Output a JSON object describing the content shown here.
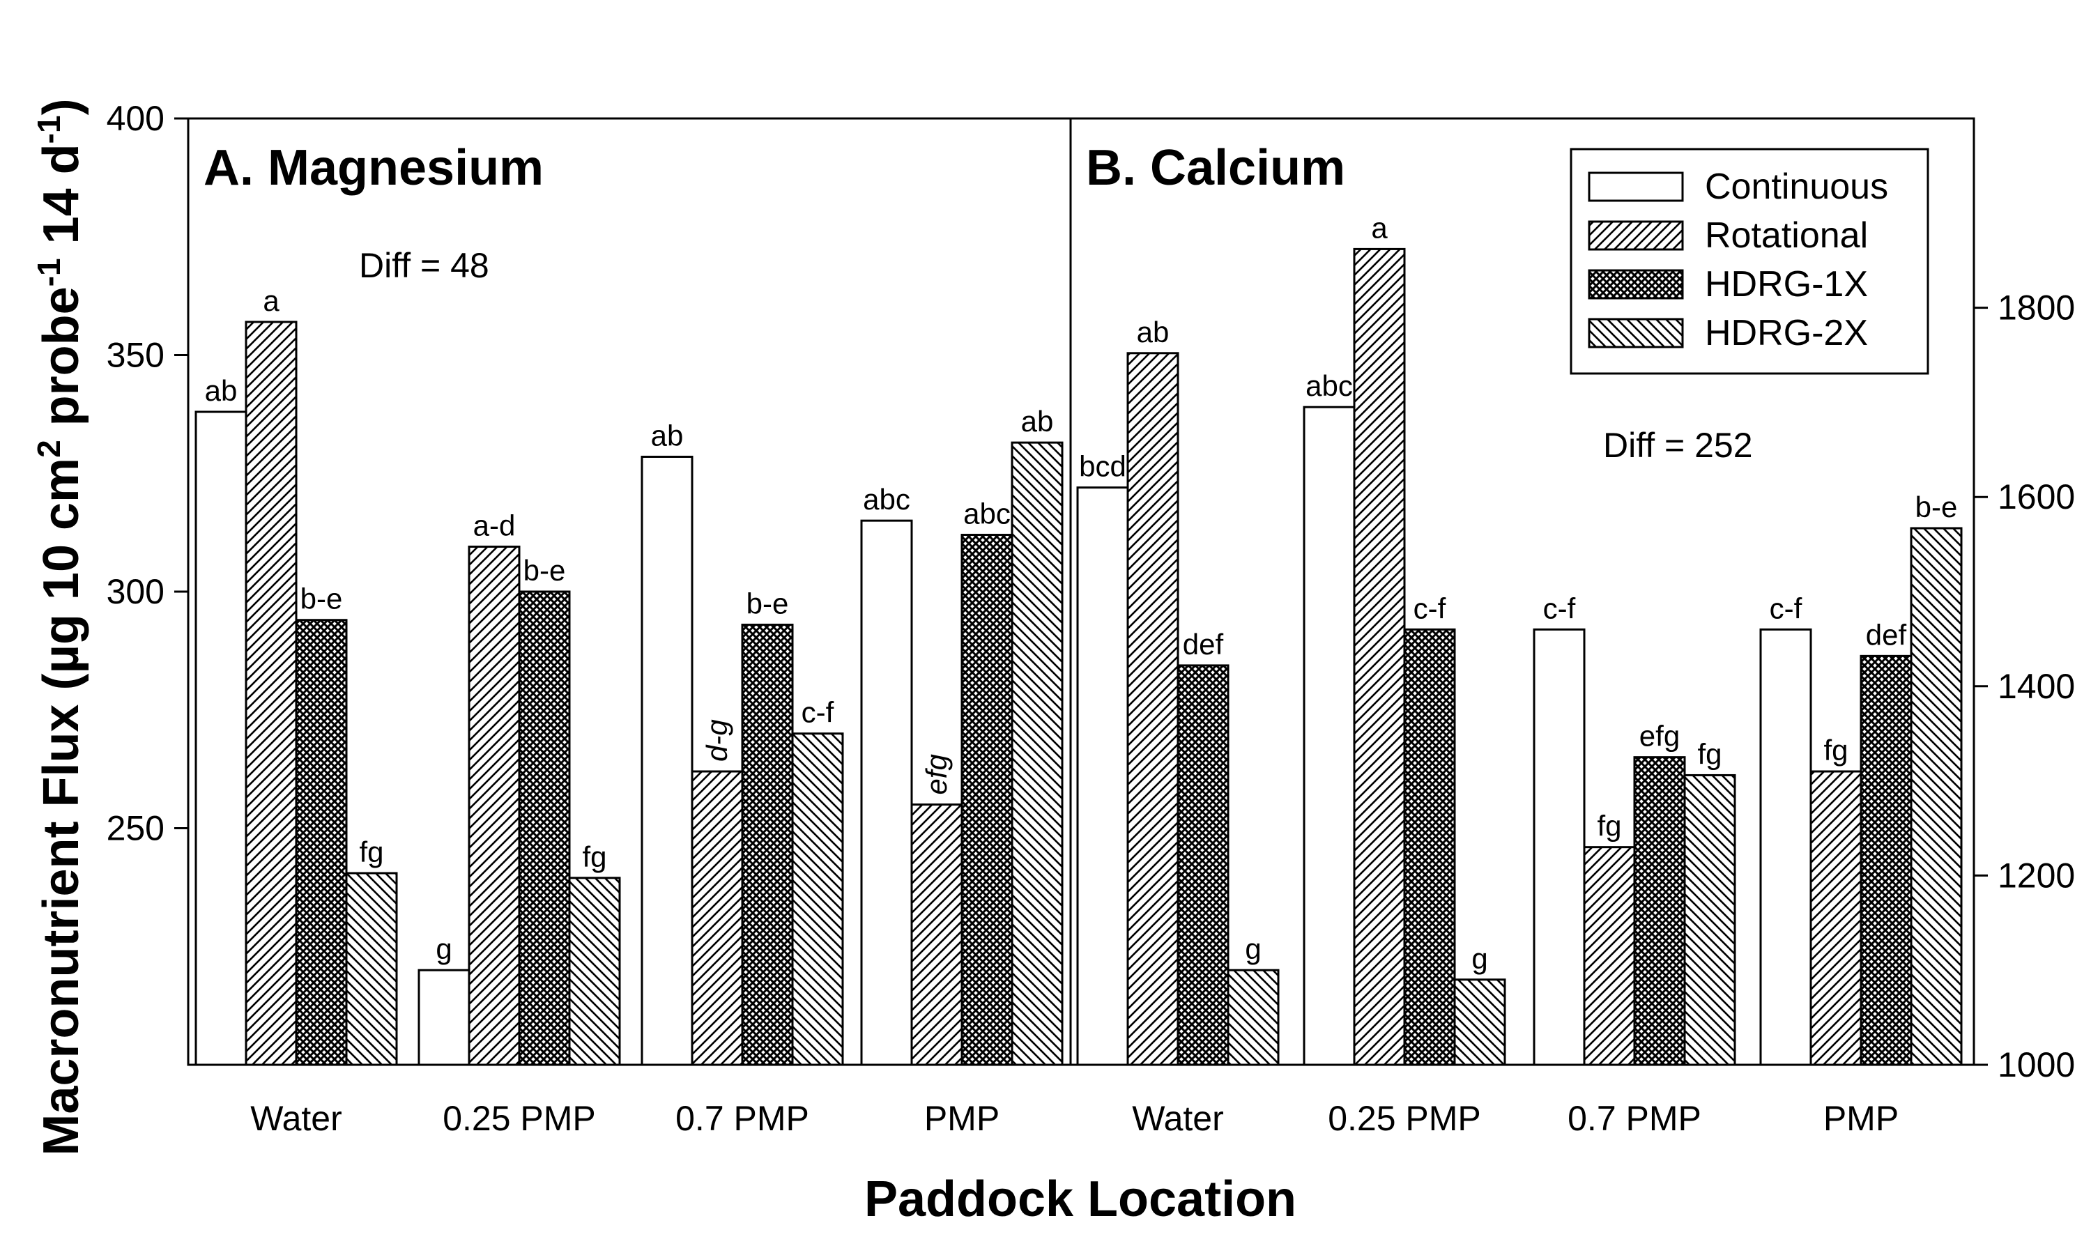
{
  "chart_data": {
    "type": "bar",
    "x_title": "Paddock Location",
    "y_title": {
      "main": "Macronutrient Flux (µg 10 cm",
      "sup1": "2",
      "mid": " probe",
      "sup2": "-1",
      "end": " 14 d",
      "sup3": "-1",
      "close": ")"
    },
    "legend": {
      "position": "top-right",
      "entries": [
        "Continuous",
        "Rotational",
        "HDRG-1X",
        "HDRG-2X"
      ]
    },
    "panels": [
      {
        "title": "A. Magnesium",
        "diff_label": "Diff = 48",
        "axis": "left",
        "ylim": [
          200,
          400
        ],
        "yticks": [
          250,
          300,
          350,
          400
        ],
        "categories": [
          "Water",
          "0.25 PMP",
          "0.7 PMP",
          "PMP"
        ],
        "series": [
          {
            "name": "Continuous",
            "values": [
              338,
              220,
              328.5,
              315
            ],
            "labels": [
              "ab",
              "g",
              "ab",
              "abc"
            ]
          },
          {
            "name": "Rotational",
            "values": [
              357,
              309.5,
              262,
              255
            ],
            "labels": [
              "a",
              "a-d",
              "d-g",
              "efg"
            ]
          },
          {
            "name": "HDRG-1X",
            "values": [
              294,
              300,
              293,
              312
            ],
            "labels": [
              "b-e",
              "b-e",
              "b-e",
              "abc"
            ]
          },
          {
            "name": "HDRG-2X",
            "values": [
              240.5,
              239.5,
              270,
              331.5
            ],
            "labels": [
              "fg",
              "fg",
              "c-f",
              "ab"
            ]
          }
        ],
        "italic_labels": [
          "d-g",
          "efg"
        ]
      },
      {
        "title": "B. Calcium",
        "diff_label": "Diff = 252",
        "axis": "right",
        "ylim": [
          1000,
          2000
        ],
        "yticks": [
          1000,
          1200,
          1400,
          1600,
          1800
        ],
        "categories": [
          "Water",
          "0.25 PMP",
          "0.7 PMP",
          "PMP"
        ],
        "series": [
          {
            "name": "Continuous",
            "values": [
              1610,
              1695,
              1460,
              1460
            ],
            "labels": [
              "bcd",
              "abc",
              "c-f",
              "c-f"
            ]
          },
          {
            "name": "Rotational",
            "values": [
              1752,
              1862,
              1230,
              1310
            ],
            "labels": [
              "ab",
              "a",
              "fg",
              "fg"
            ]
          },
          {
            "name": "HDRG-1X",
            "values": [
              1422,
              1460,
              1325,
              1432
            ],
            "labels": [
              "def",
              "c-f",
              "efg",
              "def"
            ]
          },
          {
            "name": "HDRG-2X",
            "values": [
              1100,
              1090,
              1306,
              1567
            ],
            "labels": [
              "g",
              "g",
              "fg",
              "b-e"
            ]
          }
        ],
        "italic_labels": []
      }
    ]
  }
}
